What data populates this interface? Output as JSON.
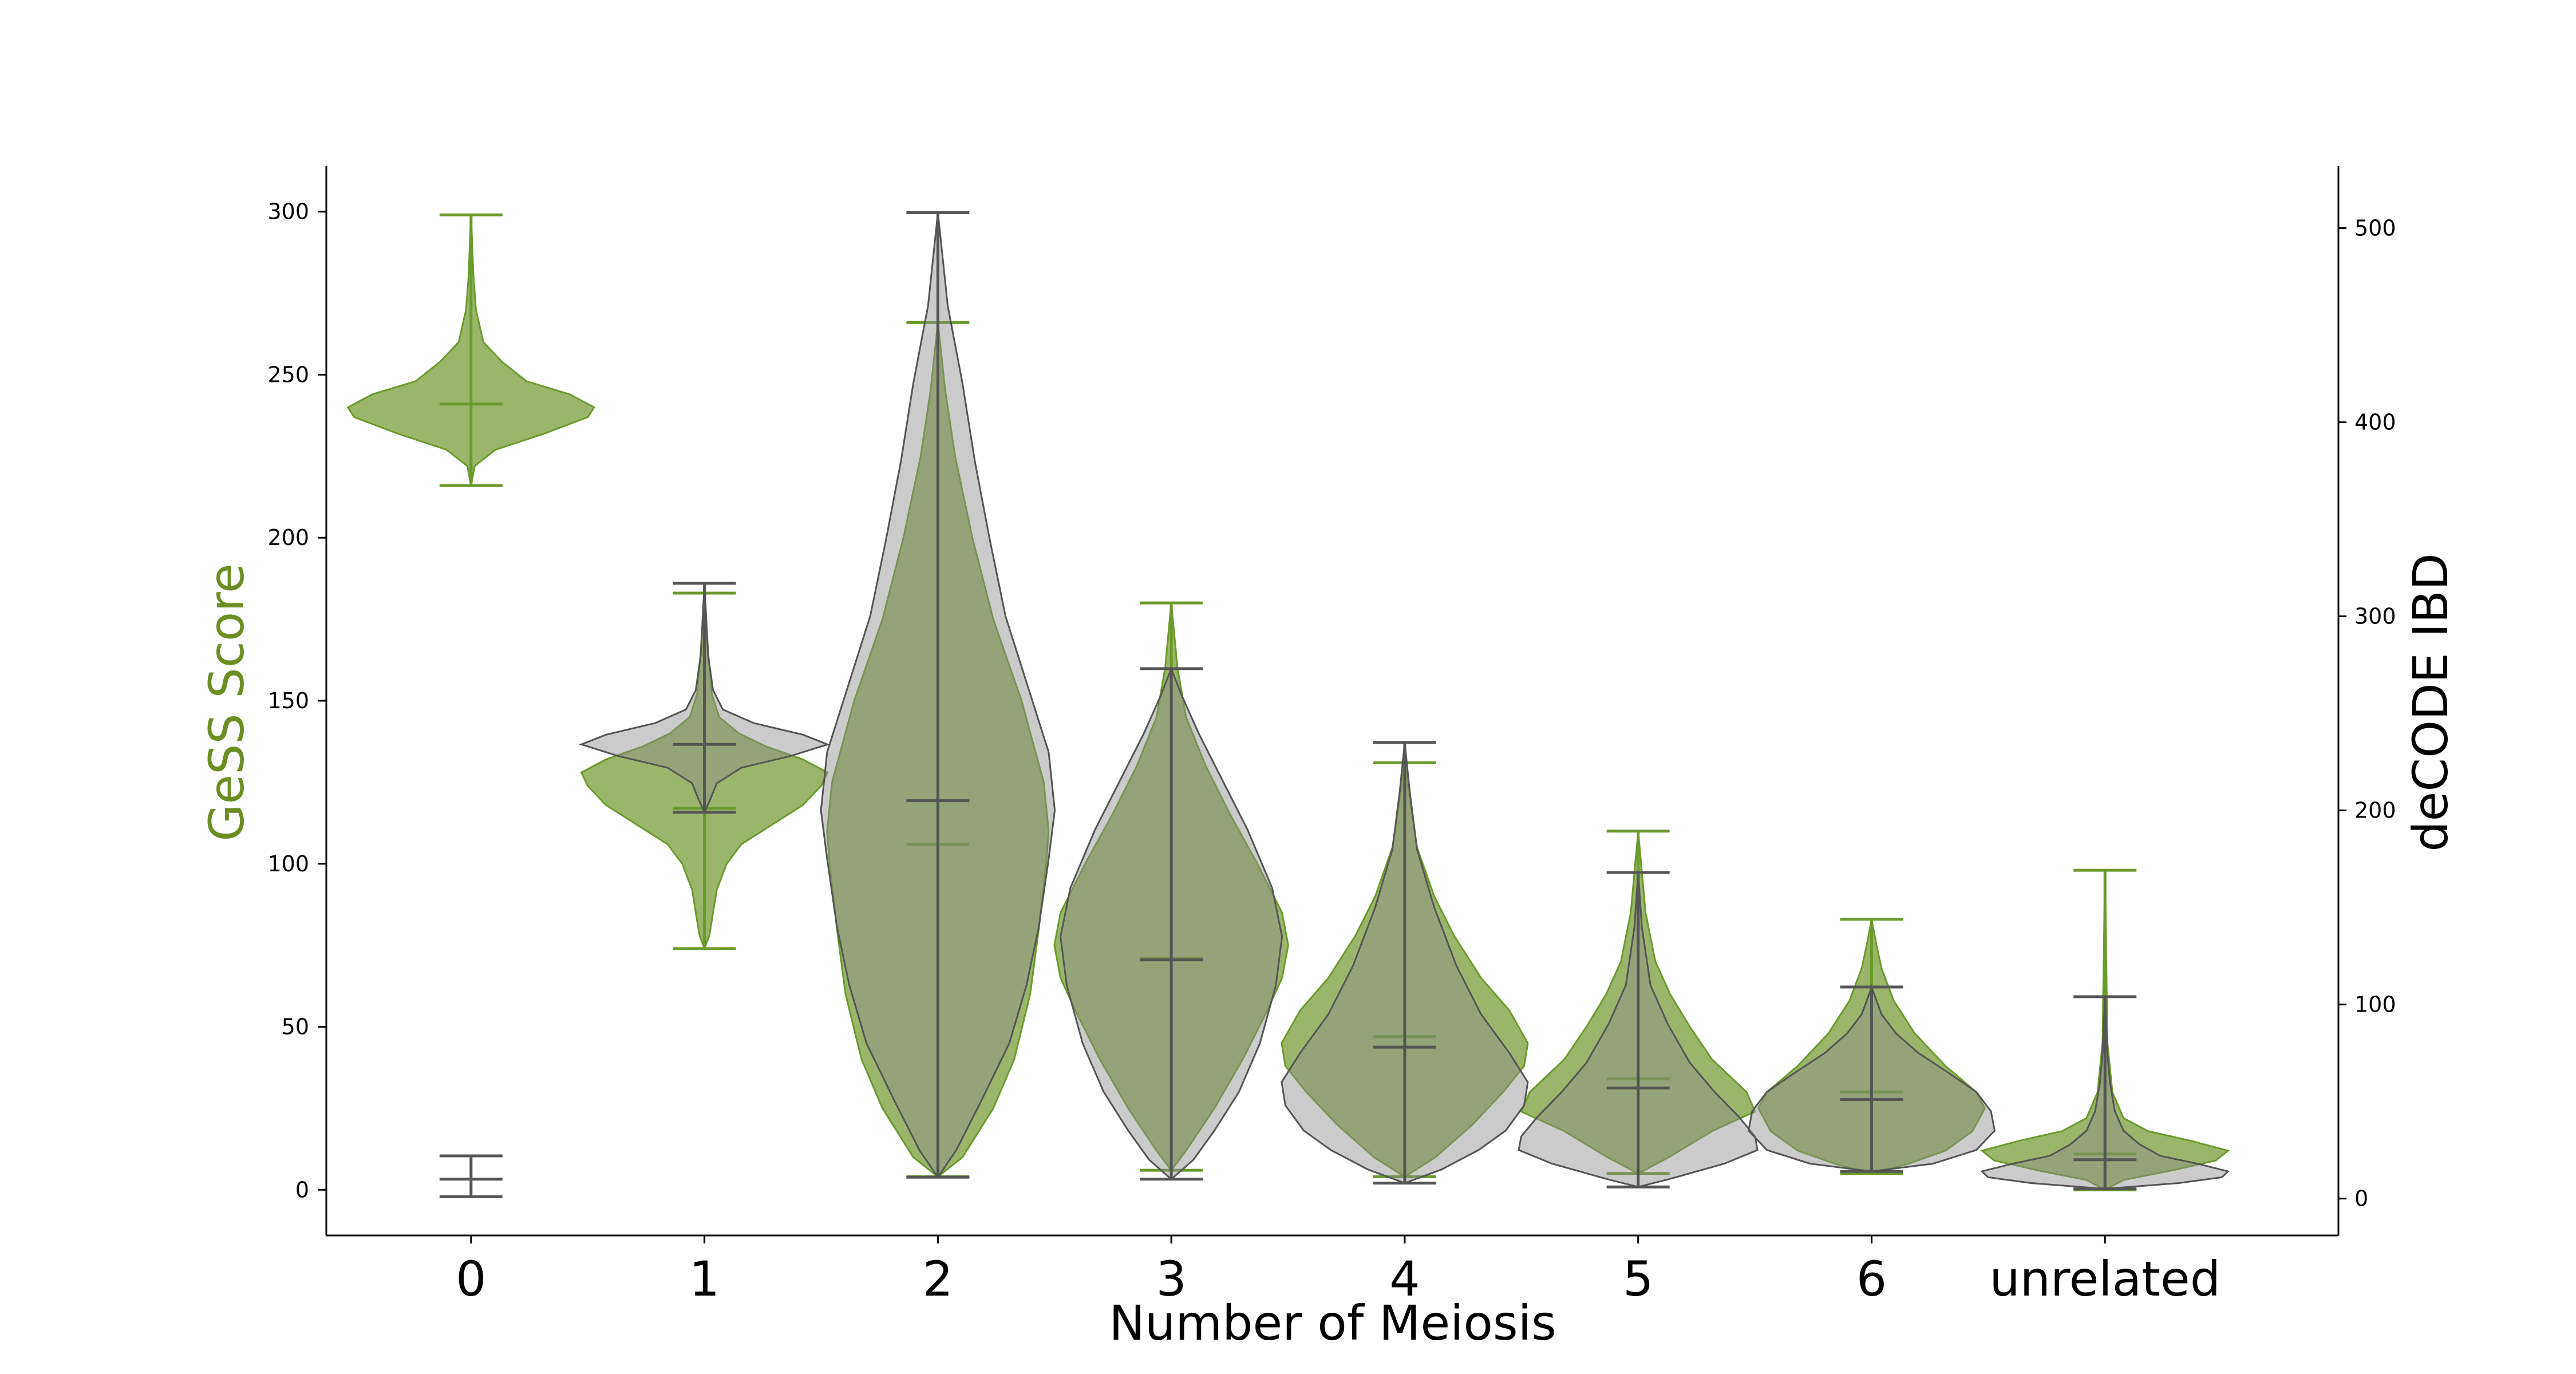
{
  "chart_data": {
    "type": "violin",
    "xlabel": "Number of Meiosis",
    "ylabel_left": "GeSS Score",
    "ylabel_right": "deCODE IBD",
    "ylim_left": [
      -14,
      314
    ],
    "ylim_right": [
      -19,
      532
    ],
    "yticks_left": [
      0,
      50,
      100,
      150,
      200,
      250,
      300
    ],
    "yticks_right": [
      0,
      100,
      200,
      300,
      400,
      500
    ],
    "categories": [
      "0",
      "1",
      "2",
      "3",
      "4",
      "5",
      "6",
      "unrelated"
    ],
    "colors": {
      "gess_fill": "#7a9e3a",
      "gess_line": "#6b9a2c",
      "ylabel_left": "#6b8e23",
      "decode_fill": "#8c8c8c",
      "decode_line": "#555555",
      "axis": "#000000"
    },
    "series": [
      {
        "name": "GeSS Score",
        "axis": "left",
        "violins": [
          {
            "min": 216,
            "median": 241,
            "max": 299,
            "shape": [
              [
                216,
                0
              ],
              [
                222,
                0.03
              ],
              [
                227,
                0.2
              ],
              [
                232,
                0.6
              ],
              [
                237,
                0.95
              ],
              [
                240,
                1.0
              ],
              [
                244,
                0.8
              ],
              [
                248,
                0.45
              ],
              [
                254,
                0.25
              ],
              [
                260,
                0.1
              ],
              [
                270,
                0.04
              ],
              [
                280,
                0.02
              ],
              [
                299,
                0
              ]
            ]
          },
          {
            "min": 74,
            "median": 117,
            "max": 183,
            "shape": [
              [
                74,
                0
              ],
              [
                78,
                0.04
              ],
              [
                85,
                0.07
              ],
              [
                92,
                0.1
              ],
              [
                100,
                0.18
              ],
              [
                106,
                0.3
              ],
              [
                112,
                0.55
              ],
              [
                118,
                0.8
              ],
              [
                124,
                0.95
              ],
              [
                128,
                1.0
              ],
              [
                132,
                0.8
              ],
              [
                136,
                0.5
              ],
              [
                140,
                0.28
              ],
              [
                145,
                0.12
              ],
              [
                152,
                0.06
              ],
              [
                165,
                0.03
              ],
              [
                183,
                0
              ]
            ]
          },
          {
            "min": 4,
            "median": 106,
            "max": 266,
            "shape": [
              [
                4,
                0
              ],
              [
                10,
                0.2
              ],
              [
                25,
                0.45
              ],
              [
                40,
                0.62
              ],
              [
                60,
                0.75
              ],
              [
                80,
                0.82
              ],
              [
                100,
                0.88
              ],
              [
                110,
                0.9
              ],
              [
                125,
                0.86
              ],
              [
                150,
                0.68
              ],
              [
                175,
                0.45
              ],
              [
                200,
                0.28
              ],
              [
                225,
                0.14
              ],
              [
                245,
                0.06
              ],
              [
                266,
                0
              ]
            ]
          },
          {
            "min": 6,
            "median": 71,
            "max": 180,
            "shape": [
              [
                6,
                0
              ],
              [
                12,
                0.12
              ],
              [
                25,
                0.35
              ],
              [
                40,
                0.58
              ],
              [
                55,
                0.78
              ],
              [
                65,
                0.9
              ],
              [
                75,
                0.95
              ],
              [
                85,
                0.9
              ],
              [
                100,
                0.7
              ],
              [
                115,
                0.48
              ],
              [
                130,
                0.28
              ],
              [
                145,
                0.12
              ],
              [
                160,
                0.05
              ],
              [
                180,
                0
              ]
            ]
          },
          {
            "min": 4,
            "median": 47,
            "max": 131,
            "shape": [
              [
                4,
                0
              ],
              [
                10,
                0.25
              ],
              [
                20,
                0.55
              ],
              [
                30,
                0.8
              ],
              [
                38,
                0.97
              ],
              [
                45,
                1.0
              ],
              [
                55,
                0.85
              ],
              [
                65,
                0.62
              ],
              [
                78,
                0.4
              ],
              [
                90,
                0.24
              ],
              [
                105,
                0.1
              ],
              [
                120,
                0.04
              ],
              [
                131,
                0
              ]
            ]
          },
          {
            "min": 5,
            "median": 34,
            "max": 110,
            "shape": [
              [
                5,
                0
              ],
              [
                10,
                0.25
              ],
              [
                18,
                0.6
              ],
              [
                24,
                0.95
              ],
              [
                30,
                0.88
              ],
              [
                40,
                0.6
              ],
              [
                50,
                0.42
              ],
              [
                60,
                0.26
              ],
              [
                70,
                0.14
              ],
              [
                85,
                0.06
              ],
              [
                110,
                0
              ]
            ]
          },
          {
            "min": 5,
            "median": 30,
            "max": 83,
            "shape": [
              [
                5,
                0
              ],
              [
                8,
                0.3
              ],
              [
                12,
                0.6
              ],
              [
                18,
                0.82
              ],
              [
                25,
                0.92
              ],
              [
                30,
                0.85
              ],
              [
                38,
                0.6
              ],
              [
                48,
                0.35
              ],
              [
                58,
                0.18
              ],
              [
                68,
                0.08
              ],
              [
                75,
                0.04
              ],
              [
                83,
                0
              ]
            ]
          },
          {
            "min": 0,
            "median": 11,
            "max": 98,
            "shape": [
              [
                0,
                0
              ],
              [
                3,
                0.15
              ],
              [
                6,
                0.55
              ],
              [
                9,
                0.9
              ],
              [
                12,
                1.0
              ],
              [
                15,
                0.7
              ],
              [
                18,
                0.35
              ],
              [
                22,
                0.15
              ],
              [
                30,
                0.06
              ],
              [
                45,
                0.02
              ],
              [
                98,
                0
              ]
            ]
          }
        ]
      },
      {
        "name": "deCODE IBD",
        "axis": "right",
        "violins": [
          {
            "min": 1,
            "median": 10,
            "max": 22,
            "shape": []
          },
          {
            "min": 199,
            "median": 234,
            "max": 317,
            "shape": [
              [
                199,
                0
              ],
              [
                206,
                0.05
              ],
              [
                214,
                0.1
              ],
              [
                222,
                0.3
              ],
              [
                228,
                0.7
              ],
              [
                234,
                1.0
              ],
              [
                239,
                0.8
              ],
              [
                245,
                0.4
              ],
              [
                252,
                0.15
              ],
              [
                262,
                0.07
              ],
              [
                280,
                0.03
              ],
              [
                317,
                0
              ]
            ]
          },
          {
            "min": 11,
            "median": 205,
            "max": 508,
            "shape": [
              [
                11,
                0
              ],
              [
                25,
                0.15
              ],
              [
                50,
                0.35
              ],
              [
                80,
                0.58
              ],
              [
                110,
                0.72
              ],
              [
                140,
                0.82
              ],
              [
                175,
                0.9
              ],
              [
                200,
                0.95
              ],
              [
                230,
                0.9
              ],
              [
                260,
                0.75
              ],
              [
                300,
                0.55
              ],
              [
                340,
                0.42
              ],
              [
                380,
                0.3
              ],
              [
                420,
                0.2
              ],
              [
                460,
                0.08
              ],
              [
                508,
                0
              ]
            ]
          },
          {
            "min": 10,
            "median": 123,
            "max": 273,
            "shape": [
              [
                10,
                0
              ],
              [
                20,
                0.18
              ],
              [
                35,
                0.35
              ],
              [
                55,
                0.55
              ],
              [
                80,
                0.72
              ],
              [
                110,
                0.85
              ],
              [
                135,
                0.9
              ],
              [
                160,
                0.82
              ],
              [
                190,
                0.62
              ],
              [
                215,
                0.42
              ],
              [
                240,
                0.22
              ],
              [
                260,
                0.08
              ],
              [
                273,
                0
              ]
            ]
          },
          {
            "min": 8,
            "median": 78,
            "max": 235,
            "shape": [
              [
                8,
                0
              ],
              [
                15,
                0.3
              ],
              [
                25,
                0.6
              ],
              [
                35,
                0.82
              ],
              [
                48,
                0.97
              ],
              [
                60,
                1.0
              ],
              [
                75,
                0.85
              ],
              [
                95,
                0.62
              ],
              [
                120,
                0.42
              ],
              [
                150,
                0.24
              ],
              [
                180,
                0.1
              ],
              [
                210,
                0.04
              ],
              [
                235,
                0
              ]
            ]
          },
          {
            "min": 6,
            "median": 57,
            "max": 168,
            "shape": [
              [
                6,
                0
              ],
              [
                10,
                0.25
              ],
              [
                18,
                0.7
              ],
              [
                25,
                0.97
              ],
              [
                32,
                0.95
              ],
              [
                42,
                0.82
              ],
              [
                55,
                0.62
              ],
              [
                70,
                0.42
              ],
              [
                90,
                0.24
              ],
              [
                110,
                0.1
              ],
              [
                140,
                0.03
              ],
              [
                168,
                0
              ]
            ]
          },
          {
            "min": 14,
            "median": 51,
            "max": 109,
            "shape": [
              [
                14,
                0
              ],
              [
                18,
                0.5
              ],
              [
                25,
                0.85
              ],
              [
                35,
                1.0
              ],
              [
                45,
                0.97
              ],
              [
                55,
                0.85
              ],
              [
                65,
                0.62
              ],
              [
                75,
                0.38
              ],
              [
                85,
                0.2
              ],
              [
                95,
                0.08
              ],
              [
                109,
                0
              ]
            ]
          },
          {
            "min": 5,
            "median": 20,
            "max": 104,
            "shape": [
              [
                5,
                0
              ],
              [
                8,
                0.6
              ],
              [
                11,
                0.95
              ],
              [
                14,
                1.0
              ],
              [
                18,
                0.75
              ],
              [
                22,
                0.45
              ],
              [
                28,
                0.28
              ],
              [
                35,
                0.15
              ],
              [
                45,
                0.08
              ],
              [
                60,
                0.04
              ],
              [
                75,
                0.02
              ],
              [
                104,
                0
              ]
            ]
          }
        ]
      }
    ]
  }
}
